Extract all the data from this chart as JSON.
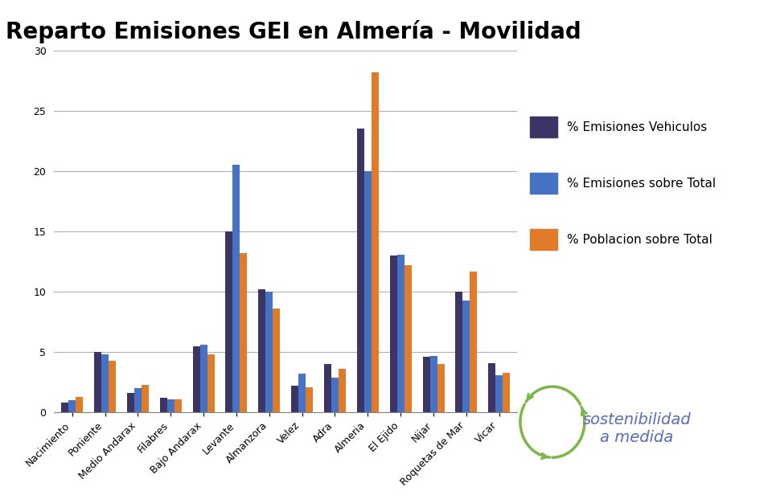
{
  "title": "Reparto Emisiones GEI en Almería - Movilidad",
  "categories": [
    "Nacimiento",
    "Poniente",
    "Medio Andarax",
    "Filabres",
    "Bajo Andarax",
    "Levante",
    "Almanzora",
    "Velez",
    "Adra",
    "Almeria",
    "El Ejido",
    "Nijar",
    "Roquetas de Mar",
    "Vicar"
  ],
  "series": [
    {
      "name": "% Emisiones Vehiculos",
      "color": "#3d3466",
      "values": [
        0.8,
        5.0,
        1.6,
        1.2,
        5.5,
        15.0,
        10.2,
        2.2,
        4.0,
        23.5,
        13.0,
        4.6,
        10.0,
        4.1
      ]
    },
    {
      "name": "% Emisiones sobre Total",
      "color": "#4472c4",
      "values": [
        1.0,
        4.8,
        2.0,
        1.1,
        5.6,
        20.5,
        10.0,
        3.2,
        2.9,
        20.0,
        13.1,
        4.7,
        9.3,
        3.1
      ]
    },
    {
      "name": "% Poblacion sobre Total",
      "color": "#e07b2a",
      "values": [
        1.3,
        4.3,
        2.3,
        1.1,
        4.8,
        13.2,
        8.6,
        2.1,
        3.6,
        28.2,
        12.2,
        4.0,
        11.7,
        3.3
      ]
    }
  ],
  "ylim": [
    0,
    30
  ],
  "yticks": [
    0,
    5,
    10,
    15,
    20,
    25,
    30
  ],
  "background_color": "#ffffff",
  "grid_color": "#b0b0b0",
  "title_fontsize": 20,
  "tick_fontsize": 9,
  "legend_fontsize": 11,
  "bar_width": 0.22,
  "logo_text": "sostenibilidad\na medida",
  "logo_color": "#5b6bbf",
  "logo_green": "#7ab648"
}
